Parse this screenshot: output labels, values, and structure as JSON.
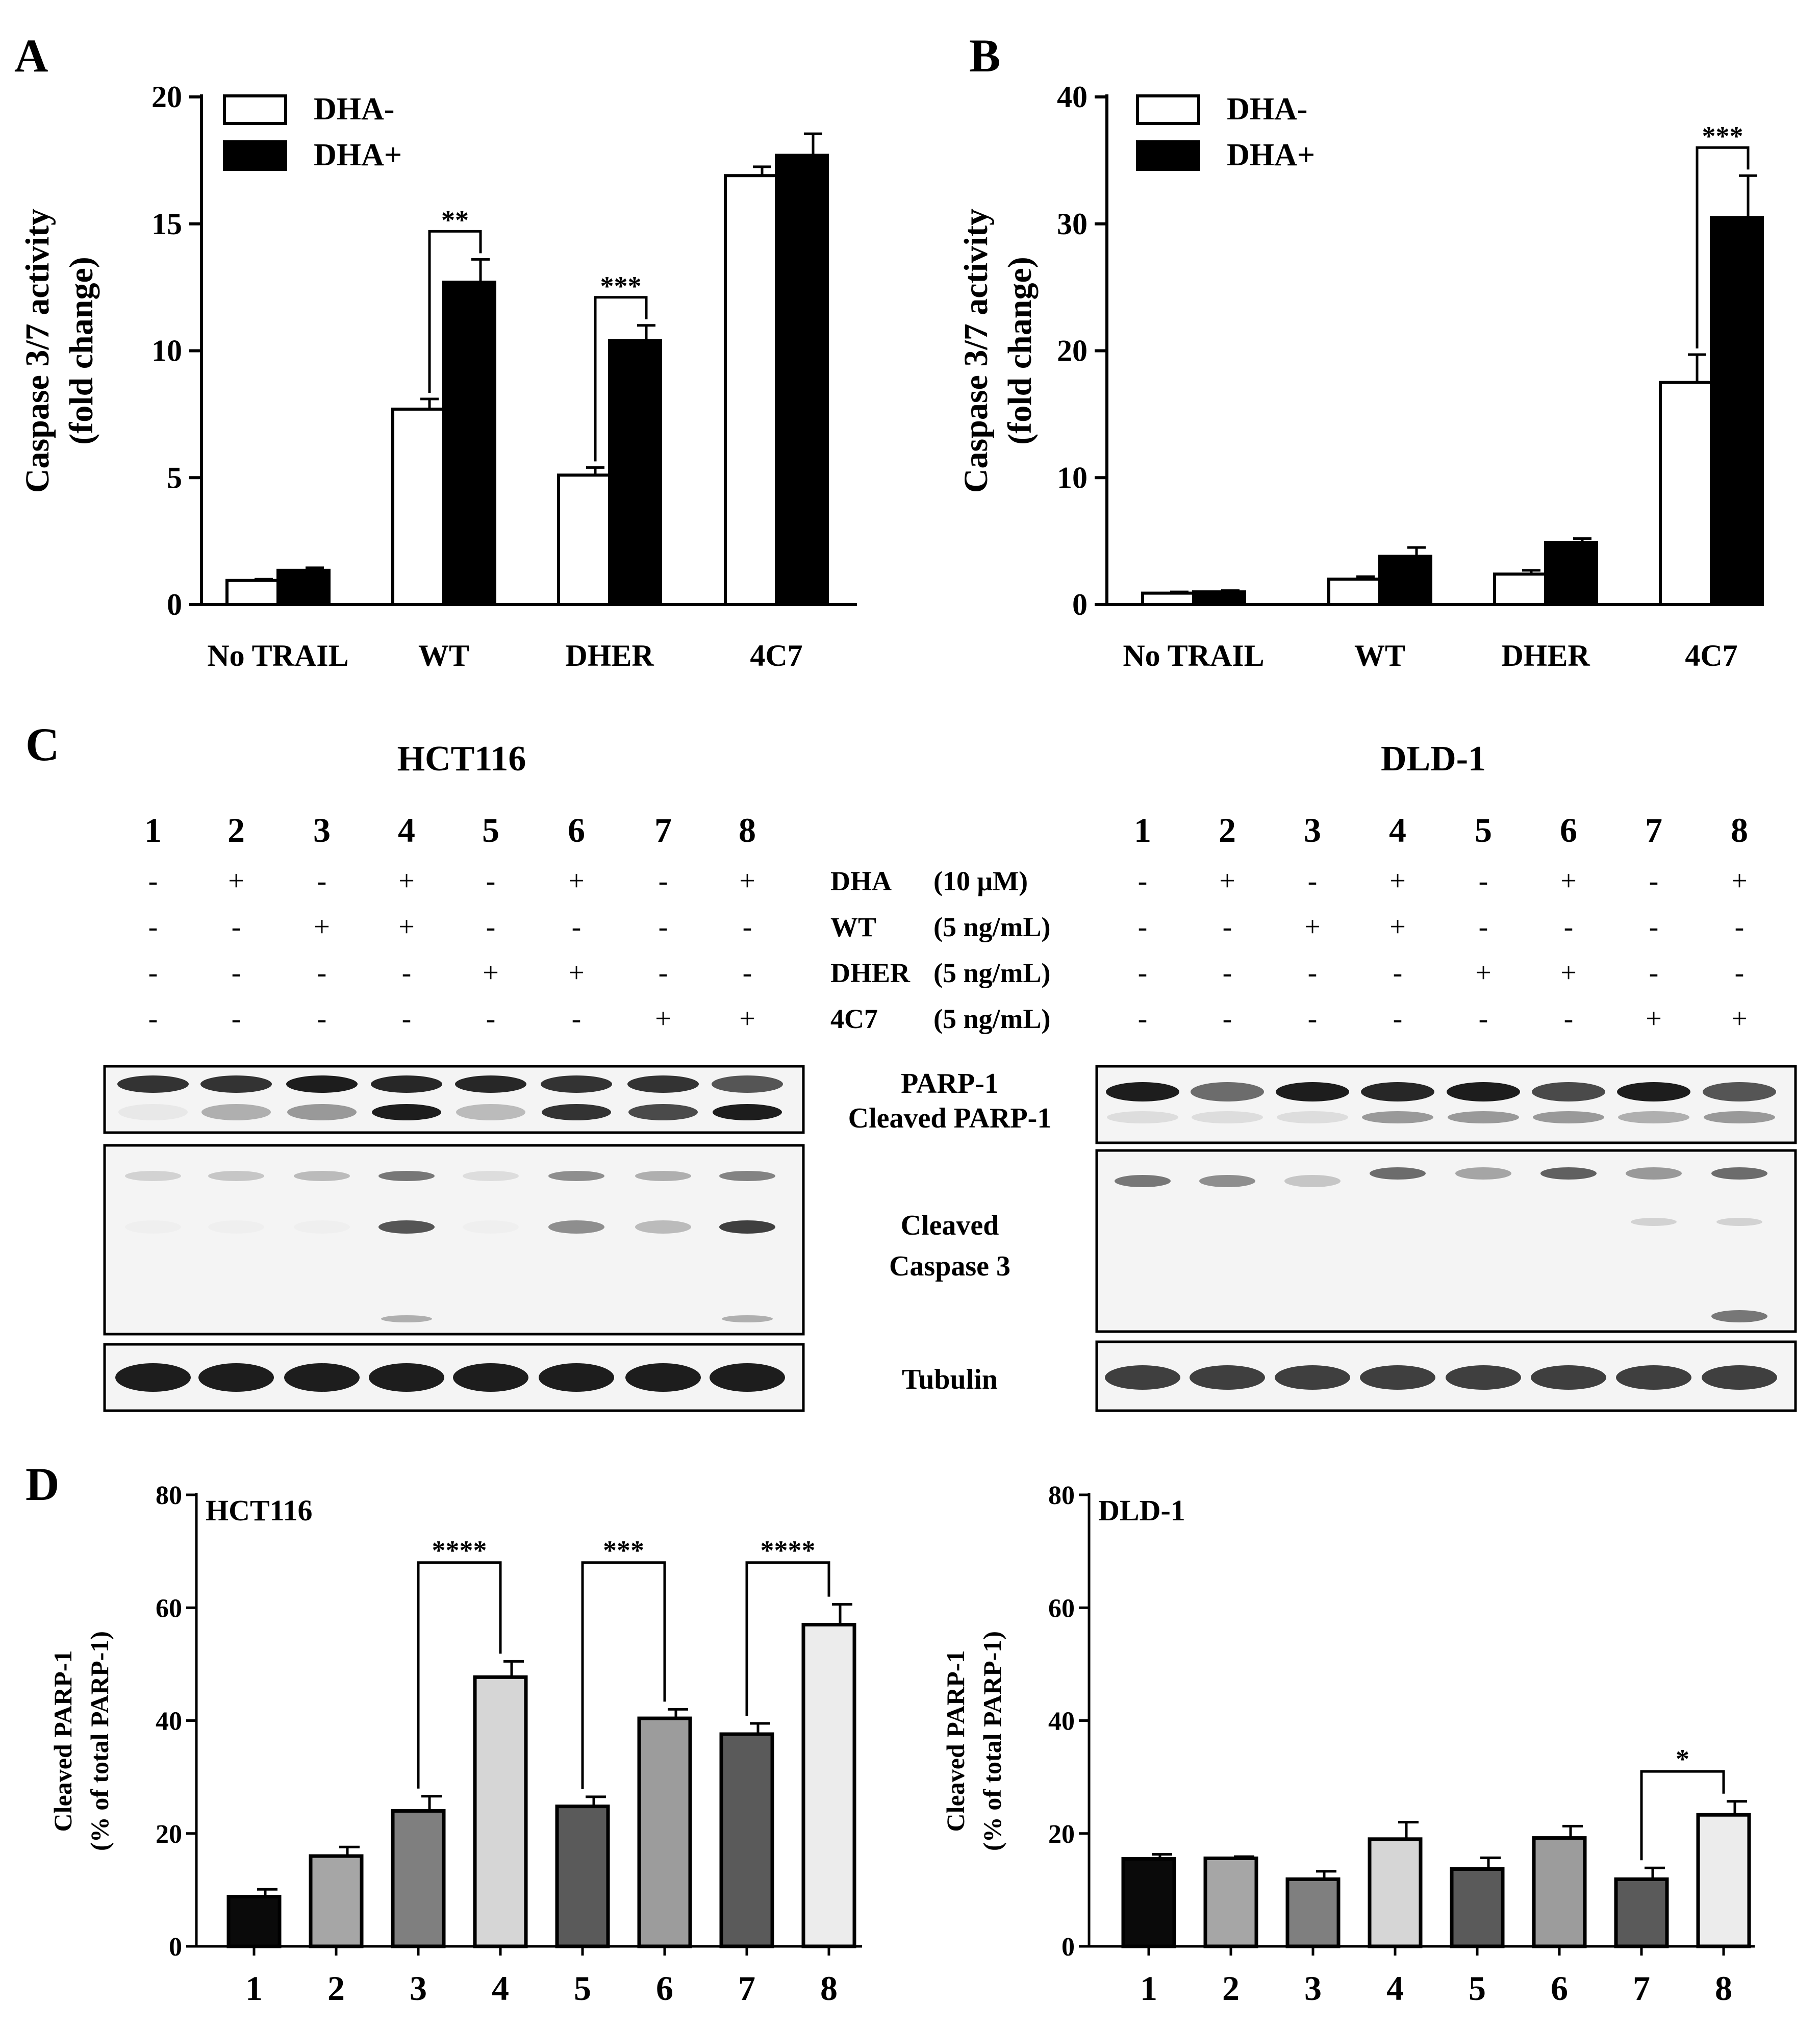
{
  "panels": {
    "A": "A",
    "B": "B",
    "C": "C",
    "D": "D"
  },
  "chart_data": [
    {
      "id": "A",
      "type": "bar",
      "ylabel_line1": "Caspase 3/7 activity",
      "ylabel_line2": "(fold change)",
      "categories": [
        "No TRAIL",
        "WT",
        "DHER",
        "4C7"
      ],
      "ylim": [
        0,
        20
      ],
      "yticks": [
        0,
        5,
        10,
        15,
        20
      ],
      "legend": [
        "DHA-",
        "DHA+"
      ],
      "series": [
        {
          "name": "DHA-",
          "values": [
            0.95,
            7.7,
            5.1,
            16.9
          ],
          "errors": [
            0.05,
            0.4,
            0.3,
            0.35
          ],
          "color": "#ffffff"
        },
        {
          "name": "DHA+",
          "values": [
            1.35,
            12.7,
            10.4,
            17.7
          ],
          "errors": [
            0.1,
            0.9,
            0.6,
            0.85
          ],
          "color": "#000000"
        }
      ],
      "significance": [
        {
          "category": 1,
          "label": "**"
        },
        {
          "category": 2,
          "label": "***"
        }
      ]
    },
    {
      "id": "B",
      "type": "bar",
      "ylabel_line1": "Caspase 3/7 activity",
      "ylabel_line2": "(fold change)",
      "categories": [
        "No TRAIL",
        "WT",
        "DHER",
        "4C7"
      ],
      "ylim": [
        0,
        40
      ],
      "yticks": [
        0,
        10,
        20,
        30,
        40
      ],
      "legend": [
        "DHA-",
        "DHA+"
      ],
      "series": [
        {
          "name": "DHA-",
          "values": [
            0.9,
            2.0,
            2.4,
            17.5
          ],
          "errors": [
            0.1,
            0.2,
            0.3,
            2.2
          ],
          "color": "#ffffff"
        },
        {
          "name": "DHA+",
          "values": [
            1.0,
            3.8,
            4.9,
            30.5
          ],
          "errors": [
            0.1,
            0.7,
            0.3,
            3.3
          ],
          "color": "#000000"
        }
      ],
      "significance": [
        {
          "category": 3,
          "label": "***"
        }
      ]
    },
    {
      "id": "D-HCT116",
      "type": "bar",
      "title": "HCT116",
      "ylabel_line1": "Cleaved PARP-1",
      "ylabel_line2": "(% of total PARP-1)",
      "categories": [
        "1",
        "2",
        "3",
        "4",
        "5",
        "6",
        "7",
        "8"
      ],
      "ylim": [
        0,
        80
      ],
      "yticks": [
        0,
        20,
        40,
        60,
        80
      ],
      "values": [
        8.8,
        16.0,
        24.0,
        47.7,
        24.8,
        40.4,
        37.6,
        57.0
      ],
      "errors": [
        1.3,
        1.6,
        2.6,
        2.8,
        1.7,
        1.6,
        1.9,
        3.6
      ],
      "colors": [
        "#0a0a0a",
        "#a6a6a6",
        "#7f7f7f",
        "#d6d6d6",
        "#5a5a5a",
        "#9c9c9c",
        "#5a5a5a",
        "#ececec"
      ],
      "significance": [
        {
          "from": 2,
          "to": 3,
          "y": 68,
          "label": "****"
        },
        {
          "from": 4,
          "to": 5,
          "y": 68,
          "label": "***"
        },
        {
          "from": 6,
          "to": 7,
          "y": 68,
          "label": "****"
        }
      ]
    },
    {
      "id": "D-DLD1",
      "type": "bar",
      "title": "DLD-1",
      "ylabel_line1": "Cleaved PARP-1",
      "ylabel_line2": "(% of total PARP-1)",
      "categories": [
        "1",
        "2",
        "3",
        "4",
        "5",
        "6",
        "7",
        "8"
      ],
      "ylim": [
        0,
        80
      ],
      "yticks": [
        0,
        20,
        40,
        60,
        80
      ],
      "values": [
        15.5,
        15.6,
        11.9,
        19.0,
        13.7,
        19.2,
        11.9,
        23.3
      ],
      "errors": [
        0.8,
        0.3,
        1.4,
        3.0,
        2.0,
        2.1,
        2.0,
        2.4
      ],
      "colors": [
        "#0a0a0a",
        "#a6a6a6",
        "#7f7f7f",
        "#d6d6d6",
        "#5a5a5a",
        "#9c9c9c",
        "#5a5a5a",
        "#ececec"
      ],
      "significance": [
        {
          "from": 6,
          "to": 7,
          "y": 31,
          "label": "*"
        }
      ]
    }
  ],
  "blot": {
    "cell_lines": [
      "HCT116",
      "DLD-1"
    ],
    "lanes": [
      "1",
      "2",
      "3",
      "4",
      "5",
      "6",
      "7",
      "8"
    ],
    "conditions": [
      {
        "name": "DHA",
        "conc": "(10 μM)",
        "marks": [
          "-",
          "+",
          "-",
          "+",
          "-",
          "+",
          "-",
          "+"
        ]
      },
      {
        "name": "WT",
        "conc": "(5 ng/mL)",
        "marks": [
          "-",
          "-",
          "+",
          "+",
          "-",
          "-",
          "-",
          "-"
        ]
      },
      {
        "name": "DHER",
        "conc": "(5 ng/mL)",
        "marks": [
          "-",
          "-",
          "-",
          "-",
          "+",
          "+",
          "-",
          "-"
        ]
      },
      {
        "name": "4C7",
        "conc": "(5 ng/mL)",
        "marks": [
          "-",
          "-",
          "-",
          "-",
          "-",
          "-",
          "+",
          "+"
        ]
      }
    ],
    "labels": {
      "parp": "PARP-1",
      "cleaved_parp": "Cleaved PARP-1",
      "casp_line1": "Cleaved",
      "casp_line2": "Caspase 3",
      "tubulin": "Tubulin"
    }
  }
}
